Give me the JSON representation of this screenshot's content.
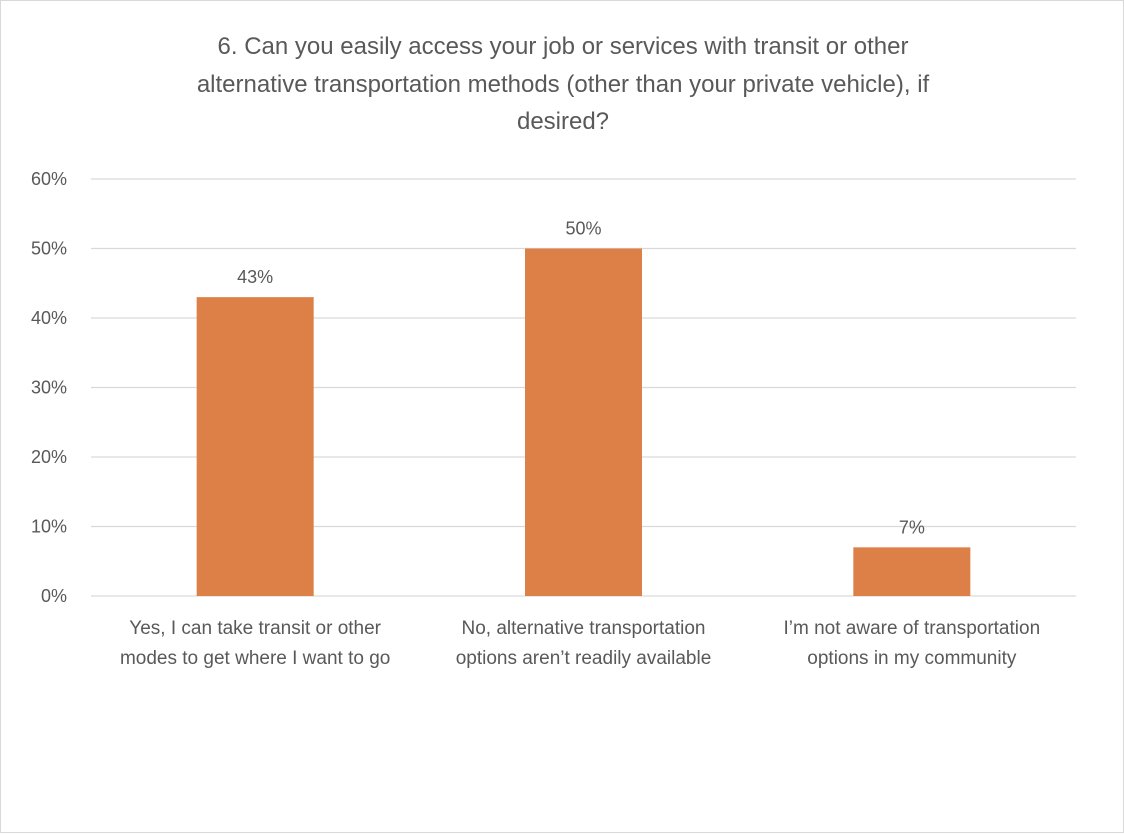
{
  "chart_data": {
    "type": "bar",
    "title_lines": [
      "6. Can you easily access your job or services with transit or other",
      "alternative transportation methods (other than your private vehicle), if",
      "desired?"
    ],
    "categories": [
      [
        "Yes, I can take transit or other",
        "modes to get where I want to go"
      ],
      [
        "No, alternative transportation",
        "options aren’t readily available"
      ],
      [
        "I’m not aware of transportation",
        "options in my community"
      ]
    ],
    "values": [
      43,
      50,
      7
    ],
    "data_labels": [
      "43%",
      "50%",
      "7%"
    ],
    "yticks": [
      "0%",
      "10%",
      "20%",
      "30%",
      "40%",
      "50%",
      "60%"
    ],
    "ylim": [
      0,
      60
    ],
    "grid": true,
    "legend": "none",
    "bar_color": "#dd8047",
    "grid_color": "#d9d9d9",
    "text_color": "#595959"
  }
}
